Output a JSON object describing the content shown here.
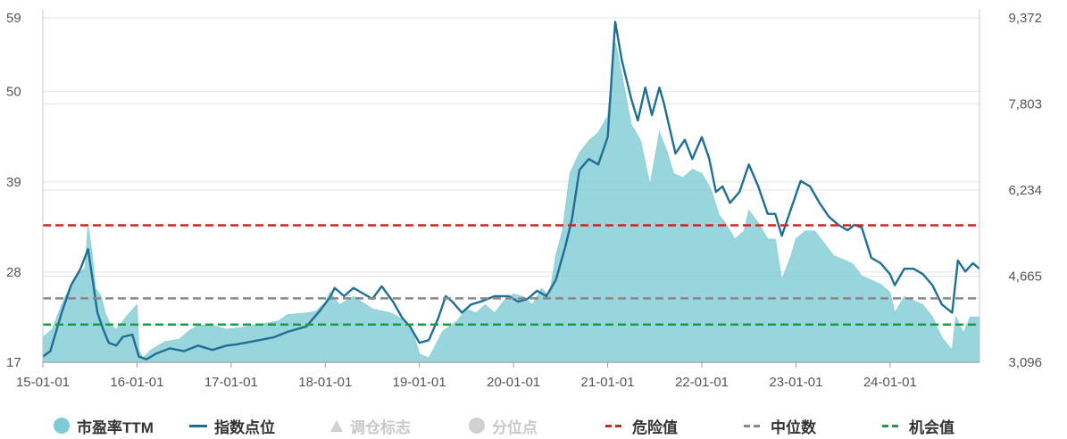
{
  "chart_data": {
    "type": "area",
    "x_ticks": [
      "15-01-01",
      "16-01-01",
      "17-01-01",
      "18-01-01",
      "19-01-01",
      "20-01-01",
      "21-01-01",
      "22-01-01",
      "23-01-01",
      "24-01-01"
    ],
    "y_left": {
      "ticks": [
        "17",
        "28",
        "39",
        "50",
        "59"
      ],
      "min": 17,
      "max": 59
    },
    "y_right": {
      "ticks": [
        "3,096",
        "4,665",
        "6,234",
        "7,803",
        "9,372"
      ],
      "min": 3096,
      "max": 9372
    },
    "x_range": [
      2015.0,
      2024.95
    ],
    "reference_lines": {
      "danger": 33.7,
      "median": 24.8,
      "opportunity": 21.6
    },
    "series": [
      {
        "name": "市盈率TTM",
        "axis": "left",
        "color": "#7fcbd4",
        "points": [
          [
            2015.0,
            20.0
          ],
          [
            2015.1,
            21.0
          ],
          [
            2015.2,
            24.0
          ],
          [
            2015.3,
            26.5
          ],
          [
            2015.38,
            27.8
          ],
          [
            2015.45,
            28.5
          ],
          [
            2015.48,
            33.5
          ],
          [
            2015.52,
            30.5
          ],
          [
            2015.56,
            26.0
          ],
          [
            2015.62,
            25.0
          ],
          [
            2015.66,
            23.0
          ],
          [
            2015.72,
            21.5
          ],
          [
            2015.78,
            21.0
          ],
          [
            2015.85,
            22.0
          ],
          [
            2015.92,
            23.0
          ],
          [
            2016.0,
            24.0
          ],
          [
            2016.02,
            18.5
          ],
          [
            2016.06,
            17.5
          ],
          [
            2016.15,
            18.5
          ],
          [
            2016.3,
            19.5
          ],
          [
            2016.45,
            19.8
          ],
          [
            2016.55,
            20.8
          ],
          [
            2016.65,
            21.5
          ],
          [
            2016.8,
            21.5
          ],
          [
            2016.95,
            21.0
          ],
          [
            2017.1,
            21.2
          ],
          [
            2017.3,
            21.6
          ],
          [
            2017.5,
            22.0
          ],
          [
            2017.6,
            22.8
          ],
          [
            2017.8,
            23.0
          ],
          [
            2017.9,
            23.2
          ],
          [
            2018.0,
            24.3
          ],
          [
            2018.05,
            25.5
          ],
          [
            2018.15,
            24.0
          ],
          [
            2018.3,
            25.0
          ],
          [
            2018.5,
            23.5
          ],
          [
            2018.7,
            23.0
          ],
          [
            2018.85,
            22.0
          ],
          [
            2018.92,
            21.0
          ],
          [
            2019.0,
            18.0
          ],
          [
            2019.1,
            17.5
          ],
          [
            2019.25,
            20.8
          ],
          [
            2019.4,
            22.0
          ],
          [
            2019.5,
            23.5
          ],
          [
            2019.6,
            23.0
          ],
          [
            2019.7,
            24.0
          ],
          [
            2019.8,
            23.0
          ],
          [
            2019.9,
            24.5
          ],
          [
            2020.0,
            25.3
          ],
          [
            2020.1,
            25.0
          ],
          [
            2020.2,
            24.0
          ],
          [
            2020.3,
            26.0
          ],
          [
            2020.38,
            25.0
          ],
          [
            2020.45,
            30.0
          ],
          [
            2020.52,
            33.0
          ],
          [
            2020.6,
            40.0
          ],
          [
            2020.7,
            42.5
          ],
          [
            2020.8,
            44.0
          ],
          [
            2020.9,
            45.0
          ],
          [
            2021.0,
            47.0
          ],
          [
            2021.08,
            56.0
          ],
          [
            2021.15,
            52.0
          ],
          [
            2021.25,
            46.0
          ],
          [
            2021.35,
            44.0
          ],
          [
            2021.45,
            38.5
          ],
          [
            2021.55,
            45.0
          ],
          [
            2021.62,
            43.0
          ],
          [
            2021.7,
            40.0
          ],
          [
            2021.8,
            39.5
          ],
          [
            2021.9,
            40.5
          ],
          [
            2022.0,
            40.0
          ],
          [
            2022.1,
            38.0
          ],
          [
            2022.18,
            35.0
          ],
          [
            2022.25,
            34.0
          ],
          [
            2022.35,
            32.0
          ],
          [
            2022.45,
            33.0
          ],
          [
            2022.5,
            35.5
          ],
          [
            2022.6,
            34.0
          ],
          [
            2022.7,
            32.0
          ],
          [
            2022.78,
            32.0
          ],
          [
            2022.85,
            27.0
          ],
          [
            2022.95,
            30.0
          ],
          [
            2023.0,
            32.0
          ],
          [
            2023.1,
            33.0
          ],
          [
            2023.2,
            33.0
          ],
          [
            2023.3,
            31.5
          ],
          [
            2023.4,
            30.0
          ],
          [
            2023.5,
            29.5
          ],
          [
            2023.6,
            29.0
          ],
          [
            2023.7,
            27.5
          ],
          [
            2023.8,
            27.0
          ],
          [
            2023.9,
            26.5
          ],
          [
            2024.0,
            25.5
          ],
          [
            2024.05,
            23.0
          ],
          [
            2024.15,
            25.0
          ],
          [
            2024.25,
            24.5
          ],
          [
            2024.35,
            24.0
          ],
          [
            2024.45,
            22.5
          ],
          [
            2024.55,
            20.0
          ],
          [
            2024.62,
            19.0
          ],
          [
            2024.66,
            18.5
          ],
          [
            2024.7,
            22.5
          ],
          [
            2024.78,
            20.5
          ],
          [
            2024.85,
            22.5
          ],
          [
            2024.95,
            22.5
          ]
        ]
      },
      {
        "name": "指数点位",
        "axis": "right",
        "color": "#1f6f94",
        "points": [
          [
            2015.0,
            3200
          ],
          [
            2015.08,
            3300
          ],
          [
            2015.2,
            4000
          ],
          [
            2015.3,
            4500
          ],
          [
            2015.4,
            4800
          ],
          [
            2015.48,
            5160
          ],
          [
            2015.52,
            4700
          ],
          [
            2015.58,
            4000
          ],
          [
            2015.64,
            3700
          ],
          [
            2015.7,
            3450
          ],
          [
            2015.78,
            3400
          ],
          [
            2015.85,
            3560
          ],
          [
            2015.95,
            3600
          ],
          [
            2016.02,
            3200
          ],
          [
            2016.1,
            3150
          ],
          [
            2016.2,
            3250
          ],
          [
            2016.35,
            3350
          ],
          [
            2016.5,
            3300
          ],
          [
            2016.65,
            3400
          ],
          [
            2016.8,
            3320
          ],
          [
            2016.95,
            3400
          ],
          [
            2017.05,
            3420
          ],
          [
            2017.15,
            3450
          ],
          [
            2017.3,
            3500
          ],
          [
            2017.45,
            3550
          ],
          [
            2017.6,
            3650
          ],
          [
            2017.8,
            3750
          ],
          [
            2017.95,
            4050
          ],
          [
            2018.05,
            4280
          ],
          [
            2018.1,
            4450
          ],
          [
            2018.2,
            4300
          ],
          [
            2018.3,
            4450
          ],
          [
            2018.4,
            4350
          ],
          [
            2018.5,
            4250
          ],
          [
            2018.6,
            4480
          ],
          [
            2018.72,
            4200
          ],
          [
            2018.82,
            3900
          ],
          [
            2018.9,
            3750
          ],
          [
            2019.0,
            3450
          ],
          [
            2019.1,
            3500
          ],
          [
            2019.2,
            3900
          ],
          [
            2019.28,
            4300
          ],
          [
            2019.35,
            4200
          ],
          [
            2019.45,
            4000
          ],
          [
            2019.55,
            4150
          ],
          [
            2019.65,
            4200
          ],
          [
            2019.8,
            4300
          ],
          [
            2019.95,
            4300
          ],
          [
            2020.05,
            4200
          ],
          [
            2020.15,
            4250
          ],
          [
            2020.25,
            4400
          ],
          [
            2020.35,
            4300
          ],
          [
            2020.45,
            4600
          ],
          [
            2020.55,
            5200
          ],
          [
            2020.62,
            5700
          ],
          [
            2020.7,
            6600
          ],
          [
            2020.8,
            6800
          ],
          [
            2020.9,
            6700
          ],
          [
            2021.0,
            7200
          ],
          [
            2021.08,
            9300
          ],
          [
            2021.15,
            8600
          ],
          [
            2021.25,
            7900
          ],
          [
            2021.32,
            7500
          ],
          [
            2021.4,
            8100
          ],
          [
            2021.47,
            7600
          ],
          [
            2021.55,
            8100
          ],
          [
            2021.6,
            7800
          ],
          [
            2021.72,
            6900
          ],
          [
            2021.82,
            7150
          ],
          [
            2021.9,
            6800
          ],
          [
            2022.0,
            7200
          ],
          [
            2022.08,
            6800
          ],
          [
            2022.15,
            6200
          ],
          [
            2022.22,
            6300
          ],
          [
            2022.3,
            6000
          ],
          [
            2022.4,
            6200
          ],
          [
            2022.5,
            6700
          ],
          [
            2022.6,
            6300
          ],
          [
            2022.7,
            5800
          ],
          [
            2022.78,
            5800
          ],
          [
            2022.85,
            5400
          ],
          [
            2022.95,
            5900
          ],
          [
            2023.05,
            6400
          ],
          [
            2023.15,
            6300
          ],
          [
            2023.25,
            6000
          ],
          [
            2023.35,
            5750
          ],
          [
            2023.45,
            5600
          ],
          [
            2023.55,
            5500
          ],
          [
            2023.62,
            5600
          ],
          [
            2023.7,
            5550
          ],
          [
            2023.8,
            5000
          ],
          [
            2023.9,
            4900
          ],
          [
            2024.0,
            4700
          ],
          [
            2024.05,
            4500
          ],
          [
            2024.15,
            4800
          ],
          [
            2024.25,
            4800
          ],
          [
            2024.35,
            4700
          ],
          [
            2024.45,
            4500
          ],
          [
            2024.55,
            4150
          ],
          [
            2024.66,
            4000
          ],
          [
            2024.72,
            4950
          ],
          [
            2024.8,
            4750
          ],
          [
            2024.88,
            4900
          ],
          [
            2024.95,
            4800
          ]
        ]
      }
    ],
    "legend": [
      {
        "label": "市盈率TTM",
        "symbol": "circle",
        "color": "#7fcbd4",
        "enabled": true
      },
      {
        "label": "指数点位",
        "symbol": "line",
        "color": "#1f6f94",
        "enabled": true
      },
      {
        "label": "调仓标志",
        "symbol": "triangle",
        "color": "#d0d0d0",
        "enabled": false
      },
      {
        "label": "分位点",
        "symbol": "circle",
        "color": "#d0d0d0",
        "enabled": false
      },
      {
        "label": "危险值",
        "symbol": "dash",
        "color": "#c62828",
        "enabled": true
      },
      {
        "label": "中位数",
        "symbol": "dash",
        "color": "#888888",
        "enabled": true
      },
      {
        "label": "机会值",
        "symbol": "dash",
        "color": "#1e9a4a",
        "enabled": true
      }
    ],
    "grid": true,
    "legend_position": "bottom"
  }
}
